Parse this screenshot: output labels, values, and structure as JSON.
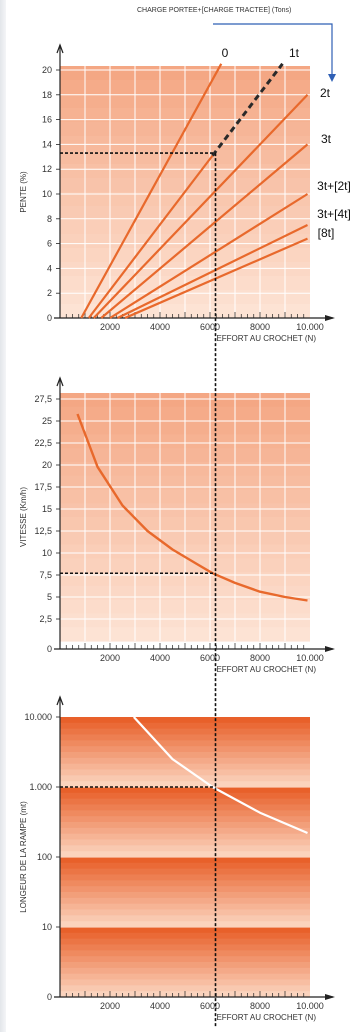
{
  "header": {
    "legend_text": "CHARGE PORTEE+[CHARGE TRACTEE] (Tons)",
    "line_color": "#2f5fb5"
  },
  "colors": {
    "curve": "#e8692c",
    "band_light": "#fde3d4",
    "band_dark": "#f4a784",
    "stripe_dark": "#e8602a",
    "stripe_light": "#fbd3bd",
    "grid": "#ffffff",
    "axis": "#222222",
    "guide": "#111111"
  },
  "chart_data": [
    {
      "type": "line",
      "xlabel": "EFFORT AU CROCHET (N)",
      "ylabel": "PENTE (%)",
      "xlim": [
        0,
        10000
      ],
      "ylim": [
        0,
        21
      ],
      "x_ticks": [
        {
          "value": 2000,
          "label": "2000"
        },
        {
          "value": 4000,
          "label": "4000"
        },
        {
          "value": 6000,
          "label": "6000"
        },
        {
          "value": 8000,
          "label": "8000"
        },
        {
          "value": 10000,
          "label": "10.000"
        }
      ],
      "y_ticks": [
        {
          "value": 0,
          "label": "0"
        },
        {
          "value": 2,
          "label": "2"
        },
        {
          "value": 4,
          "label": "4"
        },
        {
          "value": 6,
          "label": "6"
        },
        {
          "value": 8,
          "label": "8"
        },
        {
          "value": 10,
          "label": "10"
        },
        {
          "value": 12,
          "label": "12"
        },
        {
          "value": 14,
          "label": "14"
        },
        {
          "value": 16,
          "label": "16"
        },
        {
          "value": 18,
          "label": "18"
        },
        {
          "value": 20,
          "label": "20"
        }
      ],
      "series": [
        {
          "name": "0",
          "x": [
            850,
            6450
          ],
          "y": [
            0,
            20.5
          ]
        },
        {
          "name": "1t",
          "x": [
            1150,
            8900
          ],
          "y": [
            0,
            20.5
          ],
          "dashed_from_x": 6100
        },
        {
          "name": "2t",
          "x": [
            1350,
            9900
          ],
          "y": [
            0,
            18
          ]
        },
        {
          "name": "3t",
          "x": [
            1650,
            9900
          ],
          "y": [
            0,
            14
          ]
        },
        {
          "name": "3t+[2t]",
          "x": [
            2000,
            9900
          ],
          "y": [
            0,
            10
          ]
        },
        {
          "name": "3t+[4t]",
          "x": [
            2300,
            9900
          ],
          "y": [
            0,
            7.5
          ]
        },
        {
          "name": "[8t]",
          "x": [
            2600,
            9900
          ],
          "y": [
            0,
            6.4
          ]
        }
      ],
      "reading": {
        "x": 6100,
        "y": 13.3
      },
      "grid": true
    },
    {
      "type": "line",
      "xlabel": "EFFORT AU CROCHET (N)",
      "ylabel": "VITESSE (Km/h)",
      "xlim": [
        0,
        10000
      ],
      "ylim": [
        0,
        28.5
      ],
      "x_ticks": [
        {
          "value": 2000,
          "label": "2000"
        },
        {
          "value": 4000,
          "label": "4000"
        },
        {
          "value": 6000,
          "label": "6000"
        },
        {
          "value": 8000,
          "label": "8000"
        },
        {
          "value": 10000,
          "label": "10.000"
        }
      ],
      "y_ticks": [
        {
          "value": 0,
          "label": "0"
        },
        {
          "value": 2.5,
          "label": "2,5"
        },
        {
          "value": 5,
          "label": "5"
        },
        {
          "value": 7.5,
          "label": "7,5"
        },
        {
          "value": 10,
          "label": "10"
        },
        {
          "value": 12.5,
          "label": "12,5"
        },
        {
          "value": 15,
          "label": "15"
        },
        {
          "value": 17.5,
          "label": "17,5"
        },
        {
          "value": 20,
          "label": "20"
        },
        {
          "value": 22.5,
          "label": "22,5"
        },
        {
          "value": 25,
          "label": "25"
        },
        {
          "value": 27.5,
          "label": "27,5"
        }
      ],
      "series": [
        {
          "x": [
            700,
            1500,
            2500,
            3500,
            4500,
            5500,
            6100,
            7000,
            8000,
            9000,
            9900
          ],
          "y": [
            25.8,
            19.8,
            15.4,
            12.5,
            10.4,
            8.7,
            7.7,
            6.6,
            5.6,
            5.0,
            4.6
          ]
        }
      ],
      "reading": {
        "x": 6100,
        "y": 7.7
      },
      "grid": true
    },
    {
      "type": "line",
      "xlabel": "EFFORT AU CROCHET (N)",
      "ylabel": "LONGEUR DE LA RAMPE (mt)",
      "xlim": [
        0,
        10000
      ],
      "ylim": [
        1,
        10000
      ],
      "y_scale": "log",
      "x_ticks": [
        {
          "value": 2000,
          "label": "2000"
        },
        {
          "value": 4000,
          "label": "4000"
        },
        {
          "value": 6000,
          "label": "6000"
        },
        {
          "value": 8000,
          "label": "8000"
        },
        {
          "value": 10000,
          "label": "10.000"
        }
      ],
      "y_ticks": [
        {
          "value": 1,
          "label": "0"
        },
        {
          "value": 10,
          "label": "10"
        },
        {
          "value": 100,
          "label": "100"
        },
        {
          "value": 1000,
          "label": "1.000"
        },
        {
          "value": 10000,
          "label": "10.000"
        }
      ],
      "series": [
        {
          "x": [
            2950,
            4500,
            6100,
            8000,
            9900
          ],
          "y": [
            10000,
            2500,
            1000,
            430,
            220
          ]
        }
      ],
      "reading": {
        "x": 6100,
        "y": 1000
      },
      "grid": false
    }
  ]
}
